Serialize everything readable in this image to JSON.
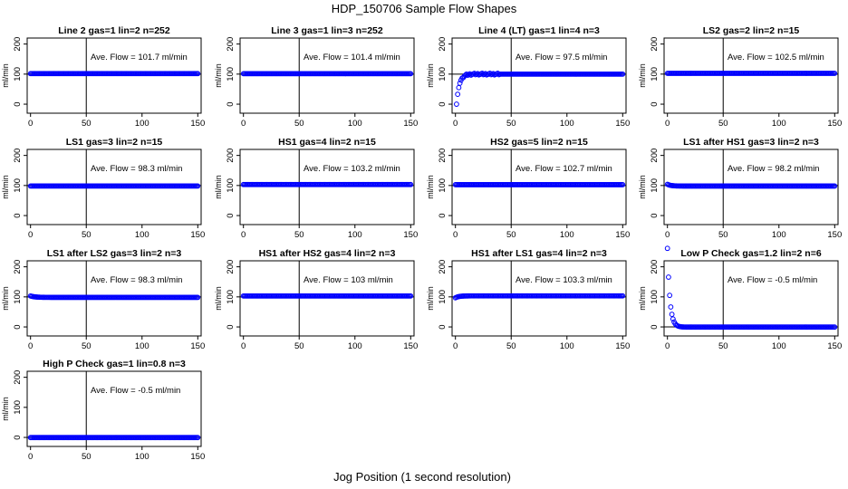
{
  "figure": {
    "title": "HDP_150706  Sample Flow Shapes",
    "xlabel": "Jog Position (1 second resolution)"
  },
  "colors": {
    "points": "#0000ff",
    "axes": "#000000"
  },
  "chart_data": [
    {
      "type": "scatter",
      "title": "Line 2 gas=1 lin=2 n=252",
      "ylabel": "ml/min",
      "annotation": "Ave. Flow =  101.7  ml/min",
      "xlim": [
        -3,
        153
      ],
      "ylim": [
        -30,
        220
      ],
      "xticks": [
        0,
        50,
        100,
        150
      ],
      "yticks": [
        0,
        100,
        200
      ],
      "vline": 50,
      "hline": 100,
      "grid": false,
      "shape": {
        "kind": "flat",
        "level": 101.7
      }
    },
    {
      "type": "scatter",
      "title": "Line 3 gas=1 lin=3 n=252",
      "ylabel": "ml/min",
      "annotation": "Ave. Flow =  101.4  ml/min",
      "xlim": [
        -3,
        153
      ],
      "ylim": [
        -30,
        220
      ],
      "xticks": [
        0,
        50,
        100,
        150
      ],
      "yticks": [
        0,
        100,
        200
      ],
      "vline": 50,
      "hline": 100,
      "grid": false,
      "shape": {
        "kind": "flat",
        "level": 101.4
      }
    },
    {
      "type": "scatter",
      "title": "Line 4 (LT) gas=1 lin=4 n=3",
      "ylabel": "ml/min",
      "annotation": "Ave. Flow =  97.5  ml/min",
      "xlim": [
        -3,
        153
      ],
      "ylim": [
        -30,
        220
      ],
      "xticks": [
        0,
        50,
        100,
        150
      ],
      "yticks": [
        0,
        100,
        200
      ],
      "vline": 50,
      "hline": 100,
      "grid": false,
      "shape": {
        "kind": "rise",
        "level": 100,
        "tau": 2.5,
        "start": 1,
        "scatter": 4
      }
    },
    {
      "type": "scatter",
      "title": "LS2 gas=2 lin=2 n=15",
      "ylabel": "ml/min",
      "annotation": "Ave. Flow =  102.5  ml/min",
      "xlim": [
        -3,
        153
      ],
      "ylim": [
        -30,
        220
      ],
      "xticks": [
        0,
        50,
        100,
        150
      ],
      "yticks": [
        0,
        100,
        200
      ],
      "vline": 50,
      "hline": 100,
      "grid": false,
      "shape": {
        "kind": "flat",
        "level": 102.5
      }
    },
    {
      "type": "scatter",
      "title": "LS1 gas=3 lin=2 n=15",
      "ylabel": "ml/min",
      "annotation": "Ave. Flow =  98.3  ml/min",
      "xlim": [
        -3,
        153
      ],
      "ylim": [
        -30,
        220
      ],
      "xticks": [
        0,
        50,
        100,
        150
      ],
      "yticks": [
        0,
        100,
        200
      ],
      "vline": 50,
      "hline": 100,
      "grid": false,
      "shape": {
        "kind": "flat",
        "level": 98.3
      }
    },
    {
      "type": "scatter",
      "title": "HS1 gas=4 lin=2 n=15",
      "ylabel": "ml/min",
      "annotation": "Ave. Flow =  103.2  ml/min",
      "xlim": [
        -3,
        153
      ],
      "ylim": [
        -30,
        220
      ],
      "xticks": [
        0,
        50,
        100,
        150
      ],
      "yticks": [
        0,
        100,
        200
      ],
      "vline": 50,
      "hline": 100,
      "grid": false,
      "shape": {
        "kind": "flat",
        "level": 103.2
      }
    },
    {
      "type": "scatter",
      "title": "HS2 gas=5 lin=2 n=15",
      "ylabel": "ml/min",
      "annotation": "Ave. Flow =  102.7  ml/min",
      "xlim": [
        -3,
        153
      ],
      "ylim": [
        -30,
        220
      ],
      "xticks": [
        0,
        50,
        100,
        150
      ],
      "yticks": [
        0,
        100,
        200
      ],
      "vline": 50,
      "hline": 100,
      "grid": false,
      "shape": {
        "kind": "flat",
        "level": 102.7
      }
    },
    {
      "type": "scatter",
      "title": "LS1 after HS1 gas=3 lin=2 n=3",
      "ylabel": "ml/min",
      "annotation": "Ave. Flow =  98.2  ml/min",
      "xlim": [
        -3,
        153
      ],
      "ylim": [
        -30,
        220
      ],
      "xticks": [
        0,
        50,
        100,
        150
      ],
      "yticks": [
        0,
        100,
        200
      ],
      "vline": 50,
      "hline": 100,
      "grid": false,
      "shape": {
        "kind": "settle",
        "level": 98.2,
        "start": 104,
        "tau": 3
      }
    },
    {
      "type": "scatter",
      "title": "LS1 after LS2 gas=3 lin=2 n=3",
      "ylabel": "ml/min",
      "annotation": "Ave. Flow =  98.3  ml/min",
      "xlim": [
        -3,
        153
      ],
      "ylim": [
        -30,
        220
      ],
      "xticks": [
        0,
        50,
        100,
        150
      ],
      "yticks": [
        0,
        100,
        200
      ],
      "vline": 50,
      "hline": 100,
      "grid": false,
      "shape": {
        "kind": "settle",
        "level": 98.3,
        "start": 103,
        "tau": 4
      }
    },
    {
      "type": "scatter",
      "title": "HS1 after HS2 gas=4 lin=2 n=3",
      "ylabel": "ml/min",
      "annotation": "Ave. Flow =  103  ml/min",
      "xlim": [
        -3,
        153
      ],
      "ylim": [
        -30,
        220
      ],
      "xticks": [
        0,
        50,
        100,
        150
      ],
      "yticks": [
        0,
        100,
        200
      ],
      "vline": 50,
      "hline": 100,
      "grid": false,
      "shape": {
        "kind": "flat",
        "level": 103
      }
    },
    {
      "type": "scatter",
      "title": "HS1 after LS1 gas=4 lin=2 n=3",
      "ylabel": "ml/min",
      "annotation": "Ave. Flow =  103.3  ml/min",
      "xlim": [
        -3,
        153
      ],
      "ylim": [
        -30,
        220
      ],
      "xticks": [
        0,
        50,
        100,
        150
      ],
      "yticks": [
        0,
        100,
        200
      ],
      "vline": 50,
      "hline": 100,
      "grid": false,
      "shape": {
        "kind": "settle",
        "level": 103.3,
        "start": 97,
        "tau": 3
      }
    },
    {
      "type": "scatter",
      "title": "Low P Check gas=1.2 lin=2 n=6",
      "ylabel": "ml/min",
      "annotation": "Ave. Flow =  -0.5  ml/min",
      "xlim": [
        -3,
        153
      ],
      "ylim": [
        -30,
        220
      ],
      "xticks": [
        0,
        50,
        100,
        150
      ],
      "yticks": [
        0,
        100,
        200
      ],
      "vline": 50,
      "hline": 0,
      "grid": false,
      "shape": {
        "kind": "decay",
        "level": -0.5,
        "start": 105,
        "tau": 2.2,
        "x0": 2
      }
    },
    {
      "type": "scatter",
      "title": "High P Check gas=1 lin=0.8 n=3",
      "ylabel": "ml/min",
      "annotation": "Ave. Flow =  -0.5  ml/min",
      "xlim": [
        -3,
        153
      ],
      "ylim": [
        -30,
        220
      ],
      "xticks": [
        0,
        50,
        100,
        150
      ],
      "yticks": [
        0,
        100,
        200
      ],
      "vline": 50,
      "hline": 0,
      "grid": false,
      "shape": {
        "kind": "flat",
        "level": -0.5
      }
    }
  ]
}
